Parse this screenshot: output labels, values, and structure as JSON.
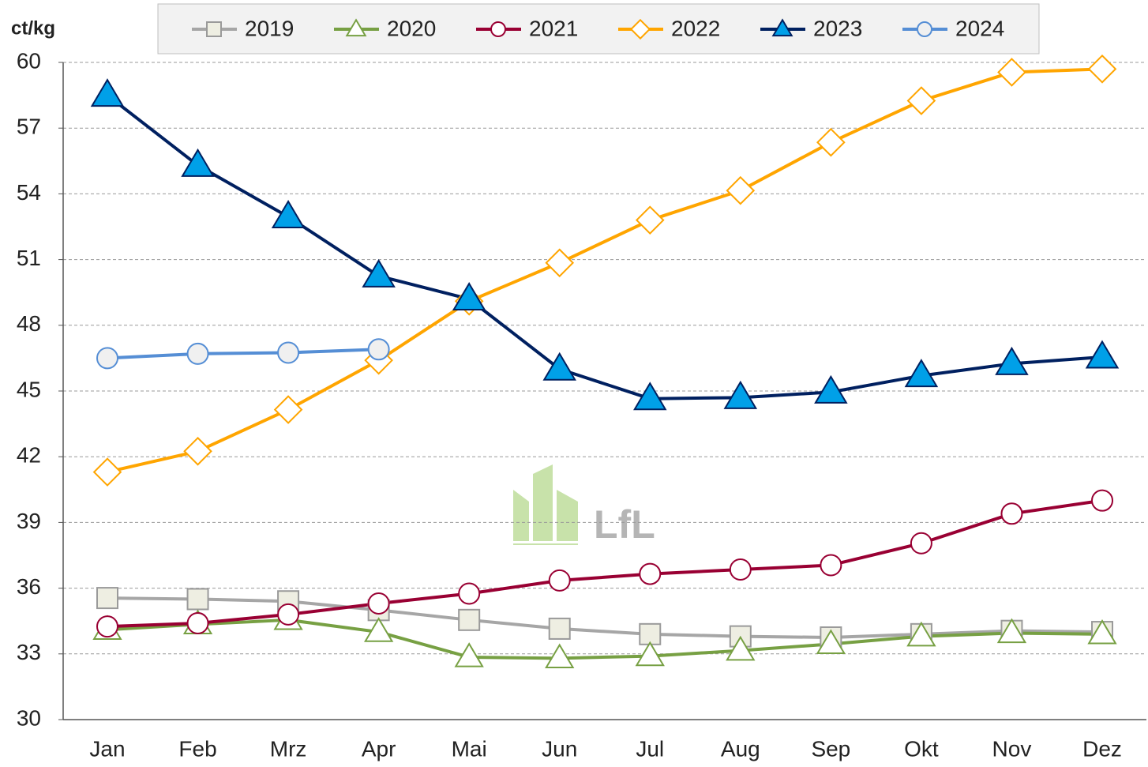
{
  "chart_data": {
    "type": "line",
    "y_label": "ct/kg",
    "watermark": "LfL",
    "categories": [
      "Jan",
      "Feb",
      "Mrz",
      "Apr",
      "Mai",
      "Jun",
      "Jul",
      "Aug",
      "Sep",
      "Okt",
      "Nov",
      "Dez"
    ],
    "ylim": [
      30,
      60
    ],
    "yticks": [
      30,
      33,
      36,
      39,
      42,
      45,
      48,
      51,
      54,
      57,
      60
    ],
    "grid": true,
    "legend": "top",
    "series": [
      {
        "name": "2019",
        "color": "#a6a6a6",
        "marker": "square",
        "marker_fill": "#eeeee2",
        "marker_stroke": "#9a9a9a",
        "values": [
          35.55,
          35.5,
          35.4,
          35.0,
          34.55,
          34.15,
          33.9,
          33.8,
          33.75,
          33.9,
          34.05,
          34.0
        ]
      },
      {
        "name": "2020",
        "color": "#77a043",
        "marker": "triangle",
        "marker_fill": "#ffffff",
        "marker_stroke": "#77a043",
        "values": [
          34.1,
          34.35,
          34.55,
          34.0,
          32.85,
          32.8,
          32.9,
          33.15,
          33.45,
          33.8,
          33.95,
          33.9
        ]
      },
      {
        "name": "2021",
        "color": "#990033",
        "marker": "circle",
        "marker_fill": "#ffffff",
        "marker_stroke": "#990033",
        "values": [
          34.25,
          34.4,
          34.8,
          35.3,
          35.75,
          36.35,
          36.65,
          36.85,
          37.05,
          38.05,
          39.4,
          40.0
        ]
      },
      {
        "name": "2022",
        "color": "#ffa500",
        "marker": "diamond",
        "marker_fill": "#ffffff",
        "marker_stroke": "#ffa500",
        "values": [
          41.3,
          42.25,
          44.15,
          46.4,
          49.1,
          50.85,
          52.8,
          54.15,
          56.35,
          58.25,
          59.55,
          59.7
        ]
      },
      {
        "name": "2023",
        "color": "#002060",
        "marker": "triangle",
        "marker_fill": "#00a0e8",
        "marker_stroke": "#002060",
        "values": [
          58.5,
          55.3,
          52.95,
          50.25,
          49.2,
          46.0,
          44.65,
          44.7,
          44.95,
          45.7,
          46.25,
          46.55
        ]
      },
      {
        "name": "2024",
        "color": "#558ed5",
        "marker": "circle",
        "marker_fill": "#f0f0f0",
        "marker_stroke": "#558ed5",
        "values": [
          46.5,
          46.7,
          46.75,
          46.9,
          null,
          null,
          null,
          null,
          null,
          null,
          null,
          null
        ]
      }
    ]
  }
}
